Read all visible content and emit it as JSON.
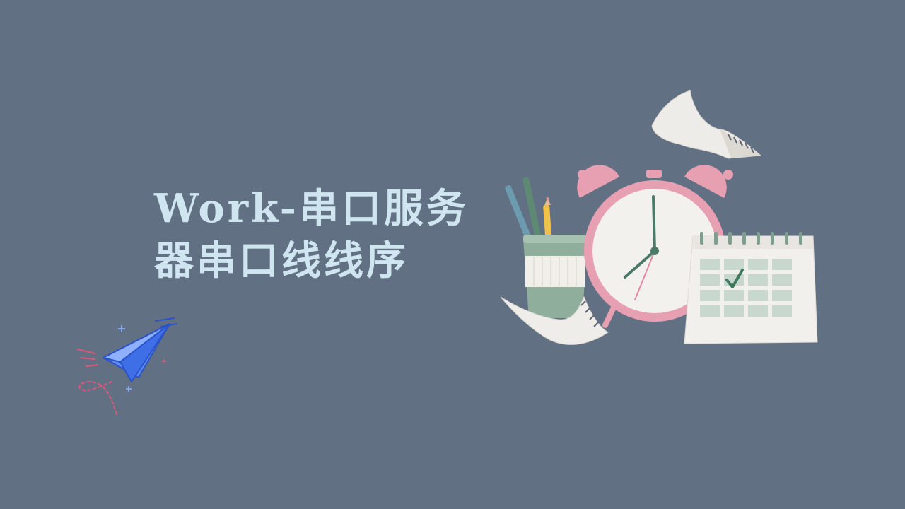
{
  "slide": {
    "title_line_1": "Work-串口服务",
    "title_line_2": "器串口线线序"
  },
  "colors": {
    "background": "#627083",
    "title": "#cfe6f1",
    "plane_blue": "#3f6fe6",
    "plane_trail": "#e0567a"
  },
  "icons": {
    "plane": "paper-plane-icon",
    "clock": "alarm-clock-icon",
    "calendar": "calendar-icon",
    "pencil_cup": "pencil-cup-icon",
    "paper": "flying-paper-icon"
  }
}
